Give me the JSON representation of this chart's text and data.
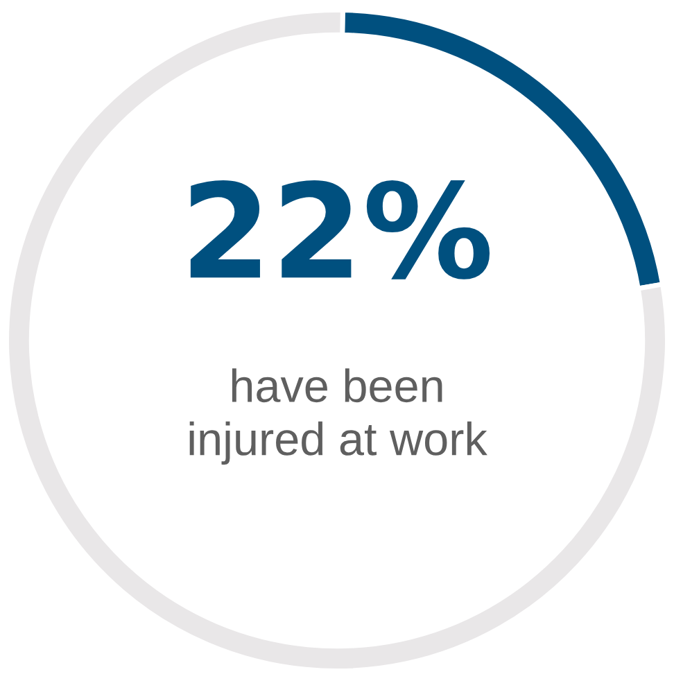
{
  "chart_data": {
    "type": "donut",
    "title": "22%",
    "subtitle": "have been\ninjured at work",
    "categories": [
      null,
      null
    ],
    "values": [
      22,
      78
    ],
    "colors": [
      "#00507f",
      "#e9e7e8"
    ]
  }
}
